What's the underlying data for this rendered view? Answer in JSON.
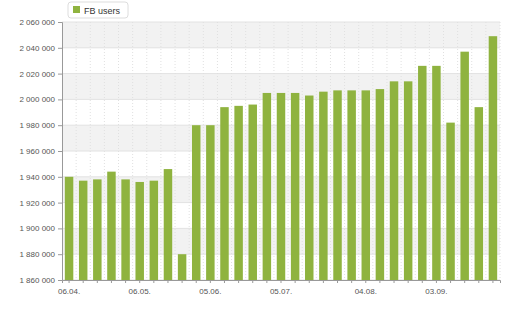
{
  "chart_data": {
    "type": "bar",
    "categories": [
      "06.04.",
      null,
      null,
      null,
      null,
      "06.05.",
      null,
      null,
      null,
      null,
      "05.06.",
      null,
      null,
      null,
      null,
      "05.07.",
      null,
      null,
      null,
      null,
      null,
      "04.08.",
      null,
      null,
      null,
      null,
      "03.09.",
      null,
      null,
      null,
      null
    ],
    "series": [
      {
        "name": "FB users",
        "color": "#8fb33f",
        "values": [
          1940000,
          1937000,
          1938000,
          1944000,
          1938000,
          1936000,
          1937000,
          1946000,
          1880000,
          1980000,
          1980000,
          1994000,
          1995000,
          1996000,
          2005000,
          2005000,
          2005000,
          2003000,
          2006000,
          2007000,
          2007000,
          2007000,
          2008000,
          2014000,
          2014000,
          2026000,
          2026000,
          1982000,
          2037000,
          1994000,
          2049000
        ]
      }
    ],
    "ylim": [
      1860000,
      2060000
    ],
    "yticks": [
      {
        "value": 1860000,
        "label": "1 860 000"
      },
      {
        "value": 1880000,
        "label": "1 880 000"
      },
      {
        "value": 1900000,
        "label": "1 900 000"
      },
      {
        "value": 1920000,
        "label": "1 920 000"
      },
      {
        "value": 1940000,
        "label": "1 940 000"
      },
      {
        "value": 1960000,
        "label": "1 960 000"
      },
      {
        "value": 1980000,
        "label": "1 980 000"
      },
      {
        "value": 2000000,
        "label": "2 000 000"
      },
      {
        "value": 2020000,
        "label": "2 020 000"
      },
      {
        "value": 2040000,
        "label": "2 040 000"
      },
      {
        "value": 2060000,
        "label": "2 060 000"
      }
    ],
    "grid": true,
    "legend": "top-left"
  }
}
